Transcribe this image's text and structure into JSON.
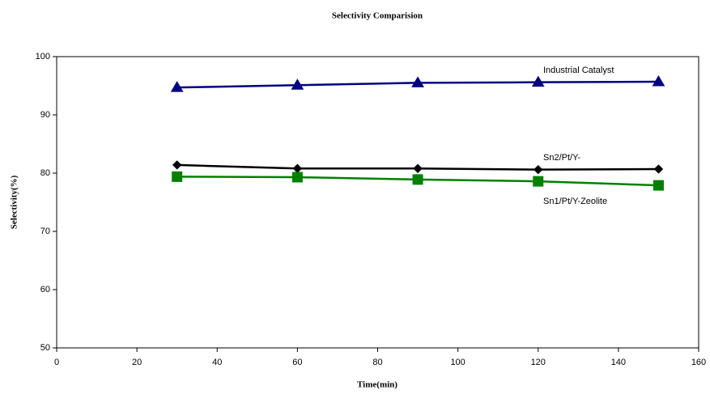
{
  "chart_data": {
    "type": "line",
    "title": "Selectivity Comparision",
    "x_label": "Time(min)",
    "y_label": "Selectivity(%)",
    "x": [
      30,
      60,
      90,
      120,
      150
    ],
    "series": [
      {
        "name": "Industrial Catalyst",
        "color": "#000080",
        "marker": "triangle",
        "values": [
          94.7,
          95.1,
          95.5,
          95.6,
          95.7
        ]
      },
      {
        "name": "Sn2/Pt/Y-",
        "color": "#000000",
        "marker": "diamond",
        "values": [
          81.4,
          80.8,
          80.8,
          80.6,
          80.7
        ]
      },
      {
        "name": "Sn1/Pt/Y-Zeolite",
        "color": "#008000",
        "marker": "square",
        "values": [
          79.4,
          79.3,
          78.9,
          78.6,
          77.9
        ]
      }
    ],
    "xlim": [
      0,
      160
    ],
    "xticks": [
      0,
      20,
      40,
      60,
      80,
      100,
      120,
      140,
      160
    ],
    "ylim": [
      50,
      100
    ],
    "yticks": [
      50,
      60,
      70,
      80,
      90,
      100
    ],
    "grid": false
  }
}
